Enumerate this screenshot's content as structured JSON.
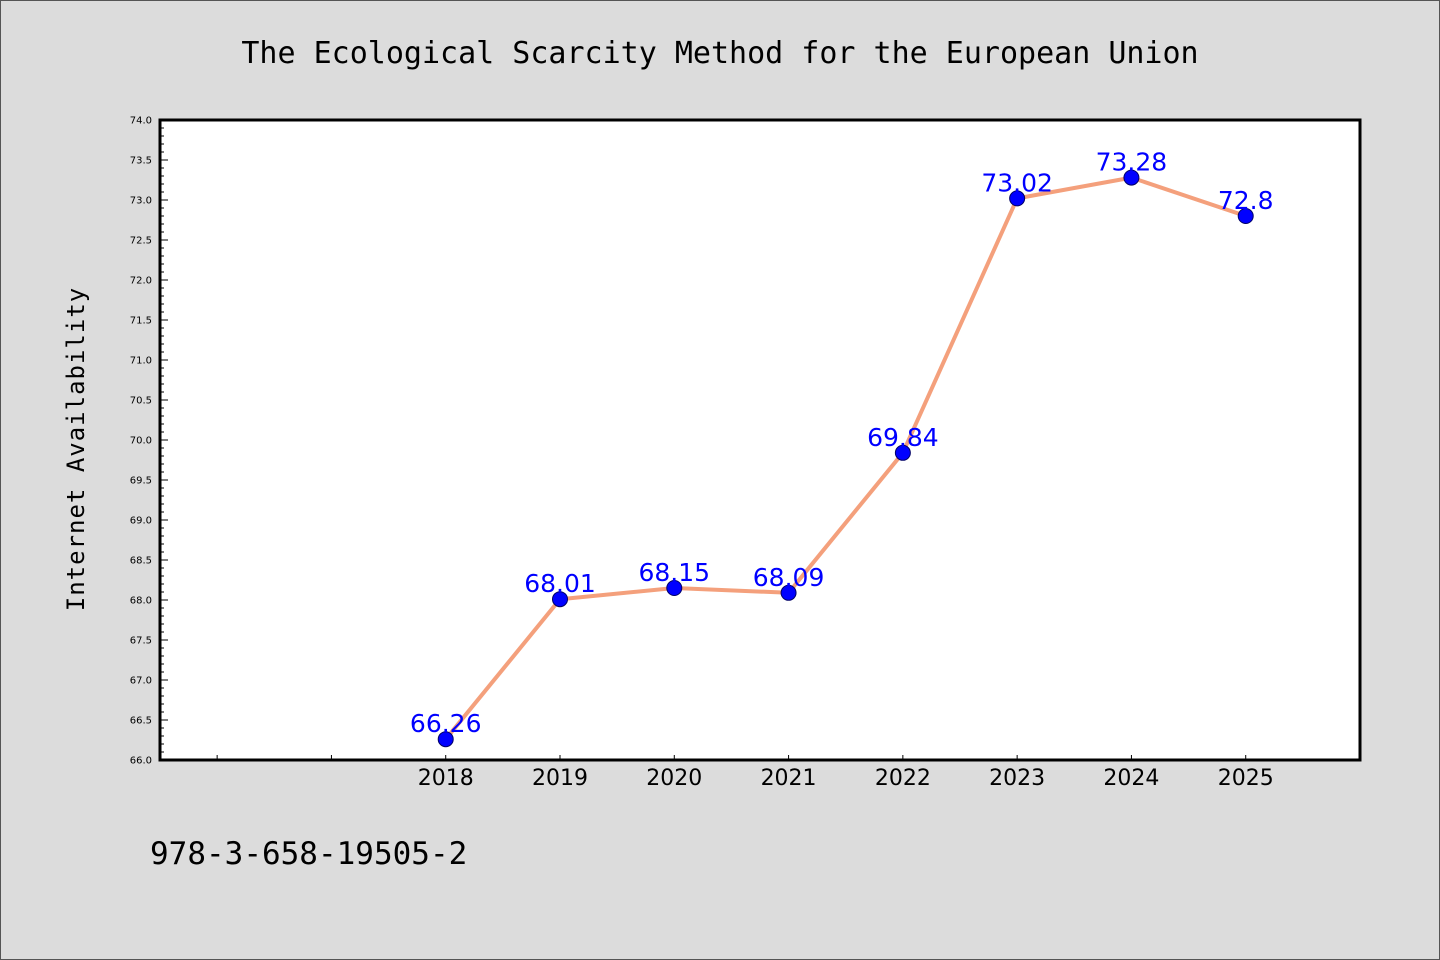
{
  "page": {
    "footer_text": "978-3-658-19505-2"
  },
  "colors": {
    "background": "#dcdcdc",
    "plot_background": "#ffffff",
    "line": "#f4a07c",
    "marker": "#0000ff",
    "data_label": "#0000ff",
    "axis": "#000000"
  },
  "chart_data": {
    "type": "line",
    "title": "The Ecological Scarcity Method for the European Union",
    "xlabel": "",
    "ylabel": "Internet Availability",
    "x": [
      "2018",
      "2019",
      "2020",
      "2021",
      "2022",
      "2023",
      "2024",
      "2025"
    ],
    "series": [
      {
        "values": [
          66.26,
          68.01,
          68.15,
          68.09,
          69.84,
          73.02,
          73.28,
          72.8
        ],
        "data_labels": [
          "66.26",
          "68.01",
          "68.15",
          "68.09",
          "69.84",
          "73.02",
          "73.28",
          "72.8"
        ]
      }
    ],
    "ylim": [
      66.0,
      74.0
    ],
    "yticks": [
      "66.0",
      "66.5",
      "67.0",
      "67.5",
      "68.0",
      "68.5",
      "69.0",
      "69.5",
      "70.0",
      "70.5",
      "71.0",
      "71.5",
      "72.0",
      "72.5",
      "73.0",
      "73.5",
      "74.0"
    ],
    "x_leading_empty_slots": 2,
    "grid": false,
    "legend": "none",
    "markers": "circle"
  }
}
